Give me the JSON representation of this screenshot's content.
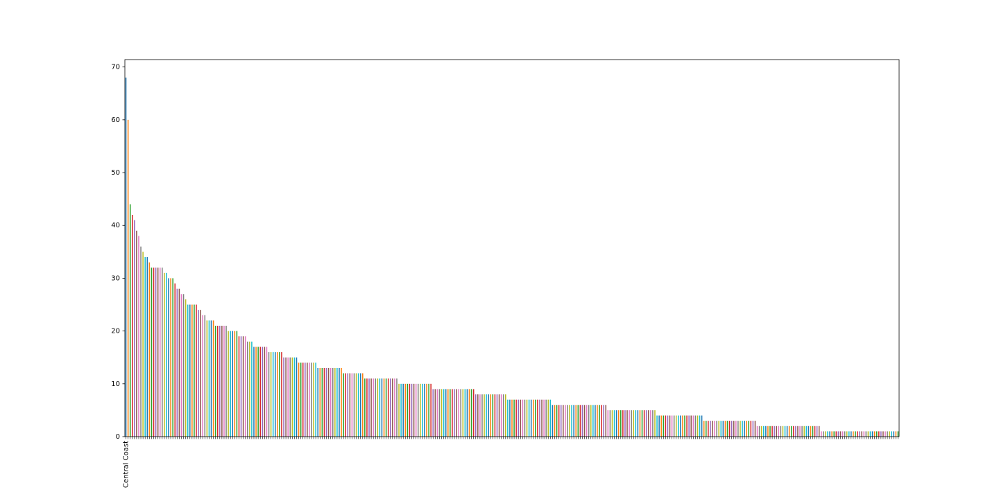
{
  "chart_data": {
    "type": "bar",
    "categories": [
      "Central Coast",
      null,
      null,
      null,
      null,
      null,
      null,
      null,
      null,
      null,
      null,
      null,
      null,
      null,
      null,
      null,
      null,
      null,
      null,
      null,
      null,
      null,
      null,
      null,
      null,
      null,
      null,
      null,
      null,
      null,
      null,
      null,
      null,
      null,
      null,
      null,
      null,
      null,
      null,
      null,
      null,
      null,
      null,
      null,
      null,
      null,
      null,
      null,
      null,
      null,
      null,
      null,
      null,
      null,
      null,
      null,
      null,
      null,
      null,
      null,
      null,
      null,
      null,
      null,
      null,
      null,
      null,
      null,
      null,
      null,
      null,
      null,
      null,
      null,
      null,
      null,
      null,
      null,
      null,
      null,
      null,
      null,
      null,
      null,
      null,
      null,
      null,
      null,
      null,
      null,
      null,
      null,
      null,
      null,
      null,
      null,
      null,
      null,
      null,
      null,
      null,
      null,
      null,
      null,
      null,
      null,
      null,
      null,
      null,
      null,
      null,
      null,
      null,
      null,
      null,
      null,
      null,
      null,
      null,
      null,
      null,
      null,
      null,
      null,
      null,
      null,
      null,
      null,
      null,
      null,
      null,
      null,
      null,
      null,
      null,
      null,
      null,
      null,
      null,
      null,
      null,
      null,
      null,
      null,
      null,
      null,
      null,
      null,
      null,
      null,
      null,
      null,
      null,
      null,
      null,
      null,
      null,
      null,
      null,
      null,
      null,
      null,
      null,
      null,
      null,
      null,
      null,
      null,
      null,
      null,
      null,
      null,
      null,
      null,
      null,
      null,
      null,
      null,
      null,
      null,
      null,
      null,
      null,
      null,
      null,
      null,
      null,
      null,
      null,
      null,
      null,
      null,
      null,
      null,
      null,
      null,
      null,
      null,
      null,
      null,
      null,
      null,
      null,
      null,
      null,
      null,
      null,
      null,
      null,
      null,
      null,
      null,
      null,
      null,
      null,
      null,
      null,
      null,
      null,
      null,
      null,
      null,
      null,
      null,
      null,
      null,
      null,
      null,
      null,
      null,
      null,
      null,
      null,
      null,
      null,
      null,
      null,
      null,
      null,
      null,
      null,
      null,
      null,
      null,
      null,
      null,
      null,
      null,
      null,
      null,
      null,
      null,
      null,
      null,
      null,
      null,
      null,
      null,
      null,
      null,
      null,
      null,
      null,
      null,
      null,
      null,
      null,
      null,
      null,
      null,
      null,
      null,
      null,
      null,
      null,
      null,
      null,
      null,
      null,
      null,
      null,
      null,
      null,
      null,
      null,
      null,
      null,
      null,
      null,
      null,
      null,
      null,
      null,
      null,
      null,
      null,
      null,
      null,
      null,
      null,
      null,
      null,
      null,
      null,
      null,
      null,
      null,
      null,
      null,
      null,
      null,
      null,
      null,
      null,
      null,
      null,
      null,
      null,
      null,
      null,
      null,
      null,
      null,
      null,
      null,
      null,
      null,
      null,
      null,
      null,
      null,
      null,
      null,
      null,
      null,
      null,
      null,
      null,
      null,
      null,
      null,
      null,
      null,
      null,
      null,
      null,
      null,
      null,
      null,
      null,
      null,
      null,
      null,
      null,
      null,
      null,
      null,
      null,
      null,
      null,
      null,
      null,
      null
    ],
    "values": [
      68,
      60,
      44,
      42,
      41,
      39,
      38,
      36,
      35,
      34,
      34,
      33,
      32,
      32,
      32,
      32,
      32,
      32,
      31,
      31,
      30,
      30,
      30,
      29,
      28,
      28,
      27,
      27,
      26,
      25,
      25,
      25,
      25,
      25,
      24,
      24,
      23,
      23,
      22,
      22,
      22,
      22,
      21,
      21,
      21,
      21,
      21,
      21,
      20,
      20,
      20,
      20,
      20,
      19,
      19,
      19,
      19,
      18,
      18,
      18,
      17,
      17,
      17,
      17,
      17,
      17,
      17,
      16,
      16,
      16,
      16,
      16,
      16,
      16,
      15,
      15,
      15,
      15,
      15,
      15,
      15,
      14,
      14,
      14,
      14,
      14,
      14,
      14,
      14,
      14,
      13,
      13,
      13,
      13,
      13,
      13,
      13,
      13,
      13,
      13,
      13,
      13,
      12,
      12,
      12,
      12,
      12,
      12,
      12,
      12,
      12,
      12,
      11,
      11,
      11,
      11,
      11,
      11,
      11,
      11,
      11,
      11,
      11,
      11,
      11,
      11,
      11,
      11,
      10,
      10,
      10,
      10,
      10,
      10,
      10,
      10,
      10,
      10,
      10,
      10,
      10,
      10,
      10,
      10,
      9,
      9,
      9,
      9,
      9,
      9,
      9,
      9,
      9,
      9,
      9,
      9,
      9,
      9,
      9,
      9,
      9,
      9,
      9,
      9,
      8,
      8,
      8,
      8,
      8,
      8,
      8,
      8,
      8,
      8,
      8,
      8,
      8,
      8,
      8,
      7,
      7,
      7,
      7,
      7,
      7,
      7,
      7,
      7,
      7,
      7,
      7,
      7,
      7,
      7,
      7,
      7,
      7,
      7,
      7,
      7,
      6,
      6,
      6,
      6,
      6,
      6,
      6,
      6,
      6,
      6,
      6,
      6,
      6,
      6,
      6,
      6,
      6,
      6,
      6,
      6,
      6,
      6,
      6,
      6,
      6,
      6,
      5,
      5,
      5,
      5,
      5,
      5,
      5,
      5,
      5,
      5,
      5,
      5,
      5,
      5,
      5,
      5,
      5,
      5,
      5,
      5,
      5,
      5,
      5,
      4,
      4,
      4,
      4,
      4,
      4,
      4,
      4,
      4,
      4,
      4,
      4,
      4,
      4,
      4,
      4,
      4,
      4,
      4,
      4,
      4,
      4,
      3,
      3,
      3,
      3,
      3,
      3,
      3,
      3,
      3,
      3,
      3,
      3,
      3,
      3,
      3,
      3,
      3,
      3,
      3,
      3,
      3,
      3,
      3,
      3,
      3,
      2,
      2,
      2,
      2,
      2,
      2,
      2,
      2,
      2,
      2,
      2,
      2,
      2,
      2,
      2,
      2,
      2,
      2,
      2,
      2,
      2,
      2,
      2,
      2,
      2,
      2,
      2,
      2,
      2,
      2,
      1,
      1,
      1,
      1,
      1,
      1,
      1,
      1,
      1,
      1,
      1,
      1,
      1,
      1,
      1,
      1,
      1,
      1,
      1,
      1,
      1,
      1,
      1,
      1,
      1,
      1,
      1,
      1,
      1,
      1,
      1,
      1,
      1,
      1,
      1,
      1,
      1
    ],
    "colors": [
      "#1f77b4",
      "#ff7f0e",
      "#2ca02c",
      "#d62728",
      "#9467bd",
      "#8c564b",
      "#e377c2",
      "#7f7f7f",
      "#bcbd22",
      "#17becf"
    ],
    "ylim": [
      0,
      71.4
    ],
    "yticks": [
      0,
      10,
      20,
      30,
      40,
      50,
      60,
      70
    ],
    "grid": false
  }
}
